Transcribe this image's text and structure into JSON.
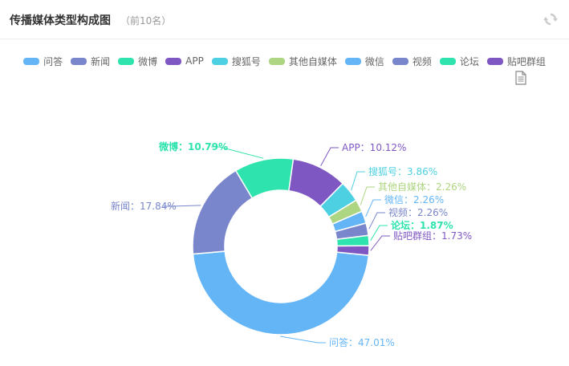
{
  "header": {
    "title": "传播媒体类型构成图",
    "subtitle": "（前10名）",
    "refresh_icon": "refresh-icon",
    "export_icon": "document-icon"
  },
  "chart_data": {
    "type": "pie",
    "variant": "donut",
    "legend_position": "top-center",
    "series": [
      {
        "name": "问答",
        "value": 47.01,
        "label": "问答：47.01%",
        "color": "#64b5f6",
        "bold": false
      },
      {
        "name": "新闻",
        "value": 17.84,
        "label": "新闻：17.84%",
        "color": "#7986cb",
        "bold": false
      },
      {
        "name": "微博",
        "value": 10.79,
        "label": "微博：10.79%",
        "color": "#2ee3ad",
        "bold": true
      },
      {
        "name": "APP",
        "value": 10.12,
        "label": "APP：10.12%",
        "color": "#7e57c2",
        "bold": false
      },
      {
        "name": "搜狐号",
        "value": 3.86,
        "label": "搜狐号：3.86%",
        "color": "#4dd0e1",
        "bold": false
      },
      {
        "name": "其他自媒体",
        "value": 2.26,
        "label": "其他自媒体：2.26%",
        "color": "#aed581",
        "bold": false
      },
      {
        "name": "微信",
        "value": 2.26,
        "label": "微信：2.26%",
        "color": "#64b5f6",
        "bold": false
      },
      {
        "name": "视频",
        "value": 2.26,
        "label": "视频：2.26%",
        "color": "#7986cb",
        "bold": false
      },
      {
        "name": "论坛",
        "value": 1.87,
        "label": "论坛：1.87%",
        "color": "#2ee3ad",
        "bold": true
      },
      {
        "name": "贴吧群组",
        "value": 1.73,
        "label": "贴吧群组：1.73%",
        "color": "#7e57c2",
        "bold": false
      }
    ]
  }
}
